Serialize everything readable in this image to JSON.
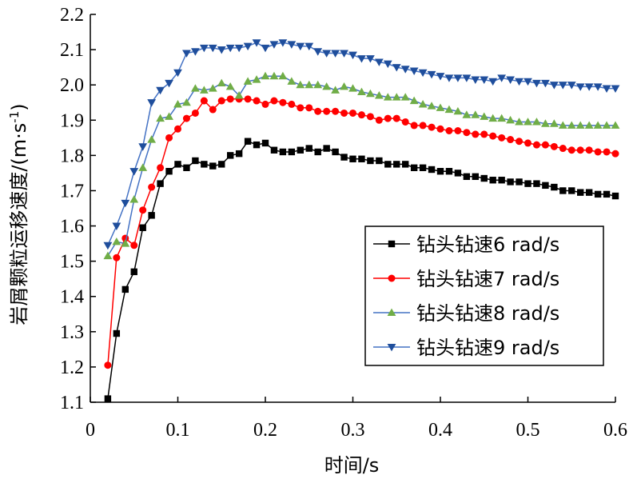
{
  "chart_data": {
    "type": "line",
    "xlabel": "时间/s",
    "ylabel": "岩屑颗粒运移速度/(m·s",
    "ylabel_sup": "-1",
    "ylabel_close": ")",
    "xlim": [
      0,
      0.6
    ],
    "ylim": [
      1.1,
      2.2
    ],
    "xticks": [
      "0",
      "0.1",
      "0.2",
      "0.3",
      "0.4",
      "0.5",
      "0.6"
    ],
    "yticks": [
      "1.1",
      "1.2",
      "1.3",
      "1.4",
      "1.5",
      "1.6",
      "1.7",
      "1.8",
      "1.9",
      "2.0",
      "2.1",
      "2.2"
    ],
    "grid": false,
    "legend_position": "bottom-right",
    "series": [
      {
        "name": "钻头钻速6 rad/s",
        "color": "#000000",
        "marker": "square",
        "x": [
          0.02,
          0.03,
          0.04,
          0.05,
          0.06,
          0.07,
          0.08,
          0.09,
          0.1,
          0.11,
          0.12,
          0.13,
          0.14,
          0.15,
          0.16,
          0.17,
          0.18,
          0.19,
          0.2,
          0.21,
          0.22,
          0.23,
          0.24,
          0.25,
          0.26,
          0.27,
          0.28,
          0.29,
          0.3,
          0.31,
          0.32,
          0.33,
          0.34,
          0.35,
          0.36,
          0.37,
          0.38,
          0.39,
          0.4,
          0.41,
          0.42,
          0.43,
          0.44,
          0.45,
          0.46,
          0.47,
          0.48,
          0.49,
          0.5,
          0.51,
          0.52,
          0.53,
          0.54,
          0.55,
          0.56,
          0.57,
          0.58,
          0.59,
          0.6
        ],
        "y": [
          1.11,
          1.295,
          1.42,
          1.47,
          1.595,
          1.63,
          1.72,
          1.755,
          1.775,
          1.765,
          1.785,
          1.775,
          1.77,
          1.775,
          1.8,
          1.805,
          1.84,
          1.83,
          1.835,
          1.815,
          1.81,
          1.81,
          1.815,
          1.82,
          1.81,
          1.82,
          1.81,
          1.795,
          1.79,
          1.79,
          1.785,
          1.785,
          1.775,
          1.775,
          1.775,
          1.765,
          1.765,
          1.76,
          1.755,
          1.755,
          1.75,
          1.74,
          1.74,
          1.735,
          1.73,
          1.73,
          1.725,
          1.725,
          1.72,
          1.72,
          1.715,
          1.71,
          1.7,
          1.7,
          1.695,
          1.695,
          1.69,
          1.69,
          1.685
        ]
      },
      {
        "name": "钻头钻速7 rad/s",
        "color": "#ff0000",
        "marker": "circle",
        "x": [
          0.02,
          0.03,
          0.04,
          0.05,
          0.06,
          0.07,
          0.08,
          0.09,
          0.1,
          0.11,
          0.12,
          0.13,
          0.14,
          0.15,
          0.16,
          0.17,
          0.18,
          0.19,
          0.2,
          0.21,
          0.22,
          0.23,
          0.24,
          0.25,
          0.26,
          0.27,
          0.28,
          0.29,
          0.3,
          0.31,
          0.32,
          0.33,
          0.34,
          0.35,
          0.36,
          0.37,
          0.38,
          0.39,
          0.4,
          0.41,
          0.42,
          0.43,
          0.44,
          0.45,
          0.46,
          0.47,
          0.48,
          0.49,
          0.5,
          0.51,
          0.52,
          0.53,
          0.54,
          0.55,
          0.56,
          0.57,
          0.58,
          0.59,
          0.6
        ],
        "y": [
          1.205,
          1.51,
          1.565,
          1.545,
          1.645,
          1.71,
          1.765,
          1.85,
          1.875,
          1.905,
          1.92,
          1.955,
          1.93,
          1.955,
          1.96,
          1.96,
          1.96,
          1.955,
          1.945,
          1.955,
          1.95,
          1.945,
          1.935,
          1.935,
          1.925,
          1.925,
          1.925,
          1.92,
          1.92,
          1.915,
          1.91,
          1.9,
          1.905,
          1.905,
          1.895,
          1.885,
          1.885,
          1.88,
          1.875,
          1.87,
          1.87,
          1.865,
          1.86,
          1.86,
          1.855,
          1.85,
          1.845,
          1.84,
          1.835,
          1.83,
          1.83,
          1.825,
          1.82,
          1.815,
          1.815,
          1.815,
          1.81,
          1.81,
          1.805
        ]
      },
      {
        "name": "钻头钻速8 rad/s",
        "color": "#4472c4",
        "marker": "triangle-up",
        "marker_color": "#70ad47",
        "x": [
          0.02,
          0.03,
          0.04,
          0.05,
          0.06,
          0.07,
          0.08,
          0.09,
          0.1,
          0.11,
          0.12,
          0.13,
          0.14,
          0.15,
          0.16,
          0.17,
          0.18,
          0.19,
          0.2,
          0.21,
          0.22,
          0.23,
          0.24,
          0.25,
          0.26,
          0.27,
          0.28,
          0.29,
          0.3,
          0.31,
          0.32,
          0.33,
          0.34,
          0.35,
          0.36,
          0.37,
          0.38,
          0.39,
          0.4,
          0.41,
          0.42,
          0.43,
          0.44,
          0.45,
          0.46,
          0.47,
          0.48,
          0.49,
          0.5,
          0.51,
          0.52,
          0.53,
          0.54,
          0.55,
          0.56,
          0.57,
          0.58,
          0.59,
          0.6
        ],
        "y": [
          1.515,
          1.555,
          1.55,
          1.675,
          1.765,
          1.845,
          1.905,
          1.91,
          1.945,
          1.95,
          1.99,
          1.985,
          1.99,
          2.005,
          1.995,
          1.97,
          2.01,
          2.015,
          2.025,
          2.025,
          2.025,
          2.01,
          2.0,
          2.0,
          2.0,
          1.995,
          1.985,
          1.995,
          1.99,
          1.98,
          1.975,
          1.97,
          1.965,
          1.965,
          1.965,
          1.955,
          1.945,
          1.94,
          1.935,
          1.93,
          1.925,
          1.915,
          1.915,
          1.91,
          1.905,
          1.905,
          1.9,
          1.895,
          1.895,
          1.895,
          1.89,
          1.89,
          1.885,
          1.885,
          1.885,
          1.885,
          1.885,
          1.885,
          1.885
        ]
      },
      {
        "name": "钻头钻速9 rad/s",
        "color": "#4472c4",
        "marker": "triangle-down",
        "marker_color": "#1f4e9c",
        "x": [
          0.02,
          0.03,
          0.04,
          0.05,
          0.06,
          0.07,
          0.08,
          0.09,
          0.1,
          0.11,
          0.12,
          0.13,
          0.14,
          0.15,
          0.16,
          0.17,
          0.18,
          0.19,
          0.2,
          0.21,
          0.22,
          0.23,
          0.24,
          0.25,
          0.26,
          0.27,
          0.28,
          0.29,
          0.3,
          0.31,
          0.32,
          0.33,
          0.34,
          0.35,
          0.36,
          0.37,
          0.38,
          0.39,
          0.4,
          0.41,
          0.42,
          0.43,
          0.44,
          0.45,
          0.46,
          0.47,
          0.48,
          0.49,
          0.5,
          0.51,
          0.52,
          0.53,
          0.54,
          0.55,
          0.56,
          0.57,
          0.58,
          0.59,
          0.6
        ],
        "y": [
          1.545,
          1.6,
          1.665,
          1.755,
          1.825,
          1.95,
          1.985,
          2.005,
          2.035,
          2.09,
          2.095,
          2.105,
          2.105,
          2.1,
          2.105,
          2.105,
          2.11,
          2.12,
          2.105,
          2.115,
          2.12,
          2.115,
          2.11,
          2.11,
          2.095,
          2.09,
          2.09,
          2.09,
          2.085,
          2.075,
          2.075,
          2.065,
          2.06,
          2.05,
          2.045,
          2.04,
          2.035,
          2.03,
          2.025,
          2.02,
          2.02,
          2.02,
          2.015,
          2.015,
          2.01,
          2.02,
          2.015,
          2.01,
          2.01,
          2.005,
          2.005,
          2.0,
          2.0,
          2.0,
          1.995,
          1.995,
          1.995,
          1.99,
          1.99
        ]
      }
    ]
  }
}
